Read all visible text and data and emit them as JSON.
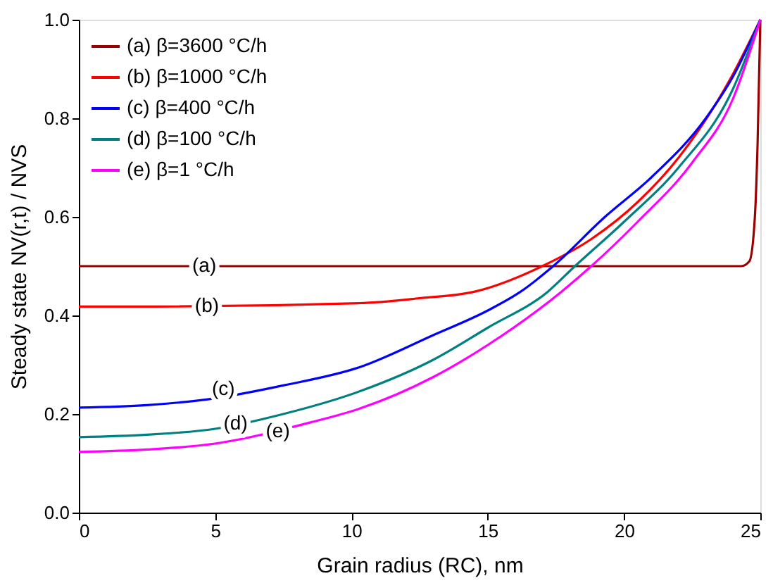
{
  "chart_data": {
    "type": "line",
    "xlabel": "Grain radius (RC), nm",
    "ylabel": "Steady state NV(r,t) / NVS",
    "xlim": [
      0,
      25
    ],
    "ylim": [
      0,
      1
    ],
    "xticks": [
      0,
      5,
      10,
      15,
      20,
      25
    ],
    "yticks": [
      {
        "value": 0,
        "label": "0.0"
      },
      {
        "value": 0.2,
        "label": "0.2"
      },
      {
        "value": 0.4,
        "label": "0.4"
      },
      {
        "value": 0.6,
        "label": "0.6"
      },
      {
        "value": 0.8,
        "label": "0.8"
      },
      {
        "value": 1,
        "label": "1.0"
      }
    ],
    "grid": false,
    "legend": "top left",
    "line_style": "solid",
    "marker": "none",
    "series": [
      {
        "name": "(a) β=3600 °C/h",
        "color": "#990000",
        "x": [
          0,
          12,
          24.3,
          24.6,
          24.8,
          24.9,
          25
        ],
        "values": [
          0.5,
          0.5,
          0.5,
          0.51,
          0.6,
          0.75,
          1.0
        ]
      },
      {
        "name": "(b) β=1000 °C/h",
        "color": "#ff0000",
        "x": [
          0,
          2,
          10.3,
          12.5,
          14.5,
          17,
          18.8,
          20.5,
          22,
          23.9,
          25
        ],
        "values": [
          0.418,
          0.418,
          0.425,
          0.435,
          0.448,
          0.5,
          0.555,
          0.63,
          0.72,
          0.88,
          1.0
        ]
      },
      {
        "name": "(c) β=400 °C/h",
        "color": "#0000ff",
        "x": [
          0,
          2.5,
          5,
          7.5,
          10.3,
          13,
          15,
          16.2,
          17.4,
          19.3,
          21,
          23,
          24,
          25
        ],
        "values": [
          0.213,
          0.218,
          0.232,
          0.258,
          0.295,
          0.36,
          0.41,
          0.448,
          0.5,
          0.6,
          0.68,
          0.8,
          0.885,
          1.0
        ]
      },
      {
        "name": "(d) β=100 °C/h",
        "color": "#008080",
        "x": [
          0,
          2.5,
          5,
          7.5,
          10.3,
          13,
          15,
          17.2,
          18.2,
          20,
          22,
          24,
          25
        ],
        "values": [
          0.153,
          0.158,
          0.17,
          0.2,
          0.246,
          0.31,
          0.375,
          0.448,
          0.5,
          0.59,
          0.7,
          0.86,
          1.0
        ]
      },
      {
        "name": "(e) β=1 °C/h",
        "color": "#ff00ff",
        "x": [
          0,
          2.5,
          5,
          8.5,
          10.3,
          13,
          15,
          17.7,
          18.8,
          20.5,
          22.5,
          24,
          25
        ],
        "values": [
          0.123,
          0.128,
          0.14,
          0.183,
          0.211,
          0.275,
          0.34,
          0.448,
          0.5,
          0.59,
          0.71,
          0.84,
          1.0
        ]
      }
    ],
    "annotations": [
      {
        "text": "(a)",
        "x": 4.6,
        "y": 0.5
      },
      {
        "text": "(b)",
        "x": 4.7,
        "y": 0.418
      },
      {
        "text": "(c)",
        "x": 5.3,
        "y": 0.25
      },
      {
        "text": "(d)",
        "x": 5.75,
        "y": 0.18
      },
      {
        "text": "(e)",
        "x": 7.3,
        "y": 0.165
      }
    ]
  }
}
